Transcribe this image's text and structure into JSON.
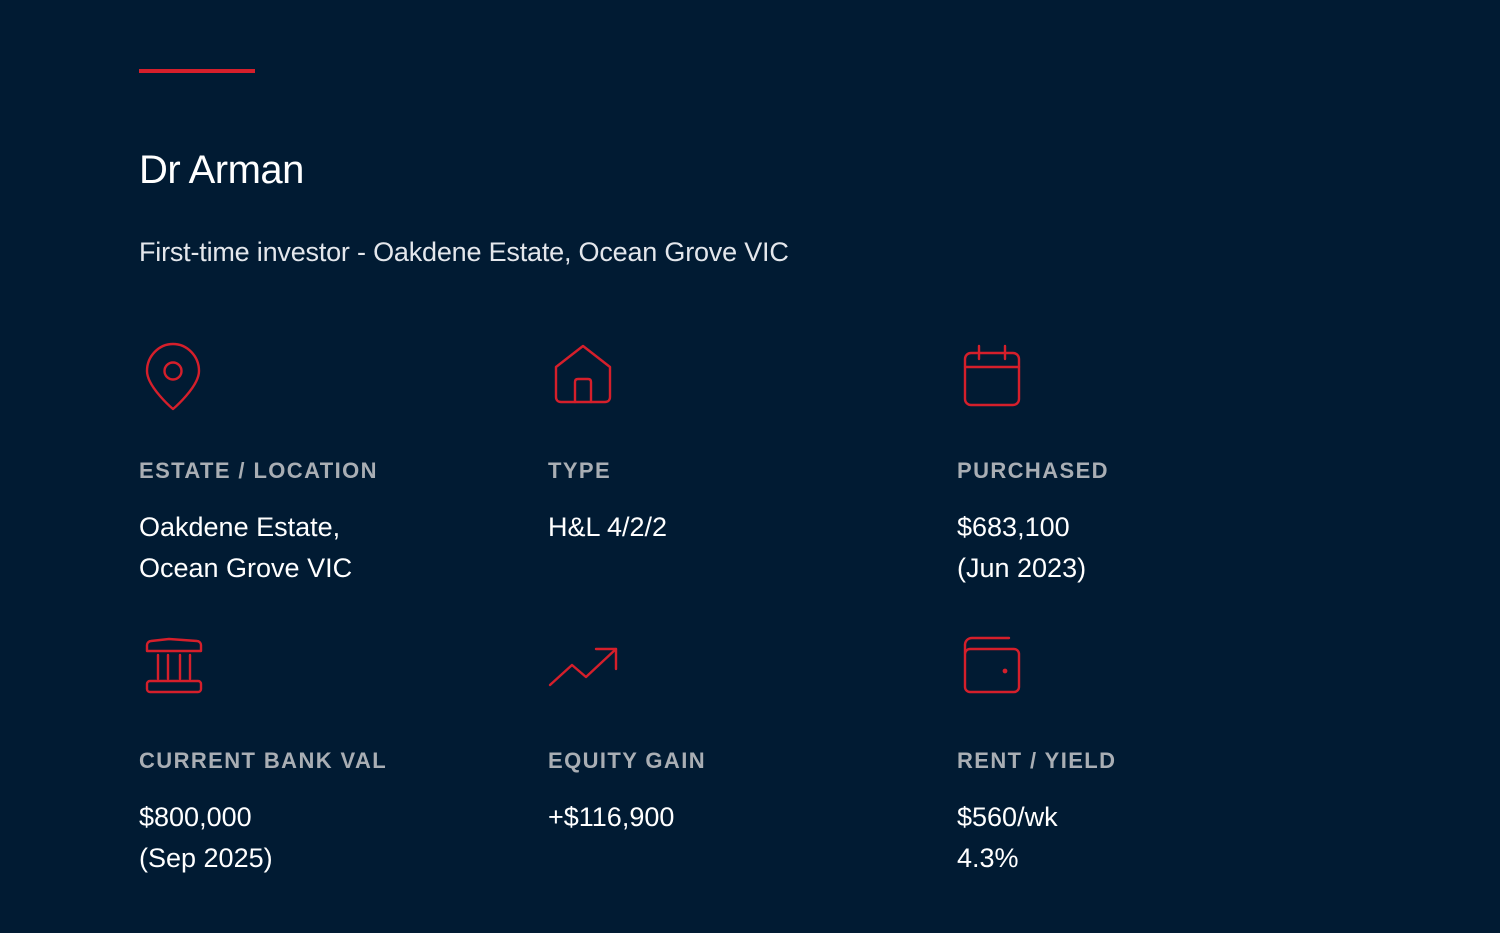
{
  "header": {
    "accent_color": "#d51f2b",
    "name": "Dr Arman",
    "subtitle": "First-time investor - Oakdene Estate, Ocean Grove VIC"
  },
  "stats": [
    {
      "icon": "map-pin-icon",
      "label": "ESTATE / LOCATION",
      "value_line1": "Oakdene Estate,",
      "value_line2": "Ocean Grove VIC"
    },
    {
      "icon": "house-icon",
      "label": "TYPE",
      "value_line1": "H&L 4/2/2",
      "value_line2": ""
    },
    {
      "icon": "calendar-icon",
      "label": "PURCHASED",
      "value_line1": "$683,100",
      "value_line2": "(Jun 2023)"
    },
    {
      "icon": "bank-icon",
      "label": "CURRENT BANK VAL",
      "value_line1": "$800,000",
      "value_line2": "(Sep 2025)"
    },
    {
      "icon": "trending-up-icon",
      "label": "EQUITY GAIN",
      "value_line1": "+$116,900",
      "value_line2": ""
    },
    {
      "icon": "wallet-icon",
      "label": "RENT / YIELD",
      "value_line1": "$560/wk",
      "value_line2": "4.3%"
    }
  ]
}
